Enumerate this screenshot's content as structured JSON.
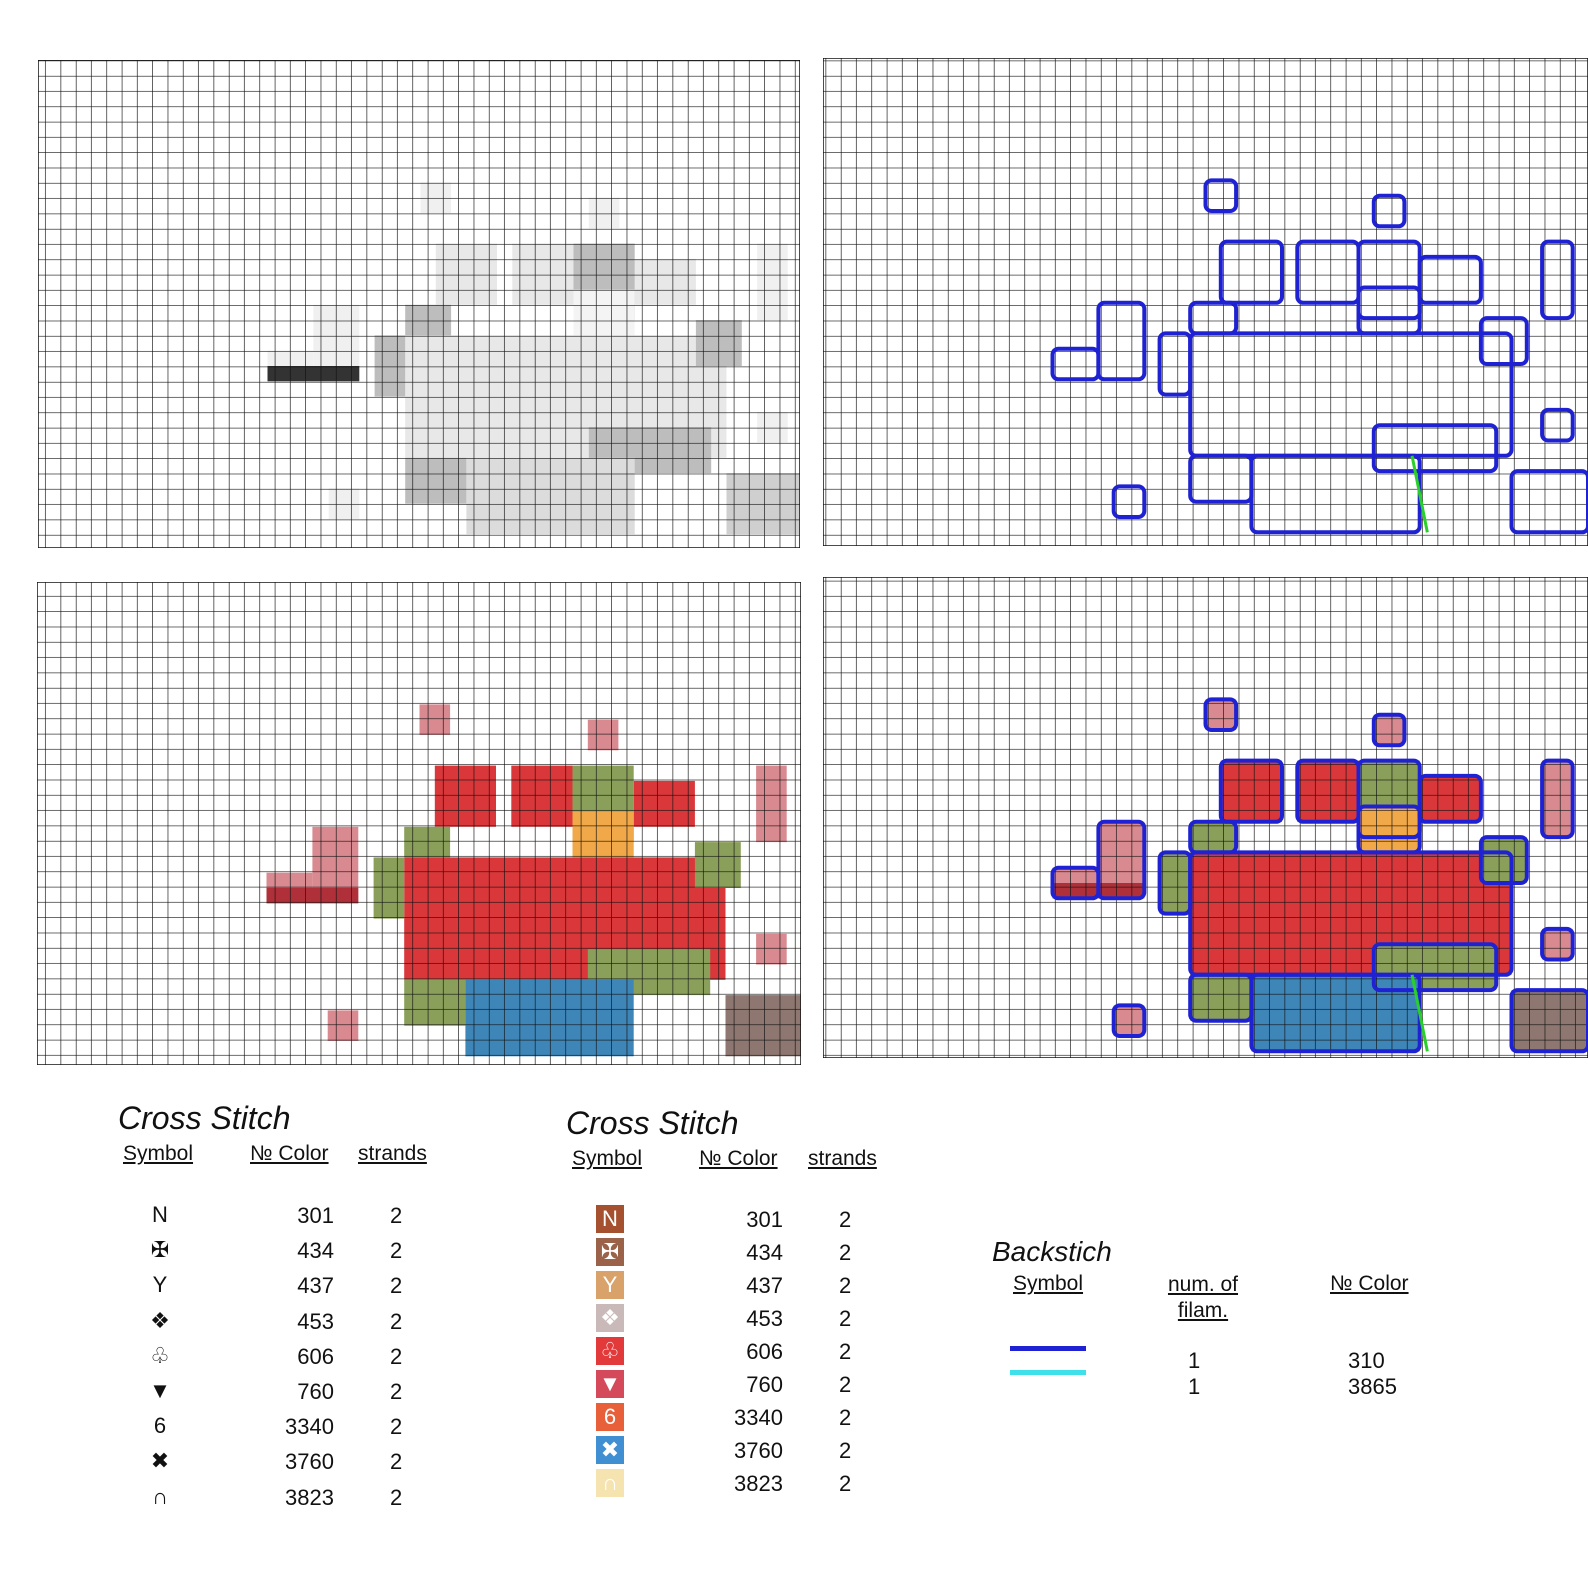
{
  "legends": [
    {
      "title": "Cross Stitch",
      "headers": [
        "Symbol",
        "№ Color",
        "strands"
      ],
      "rows": [
        {
          "symbol": "N",
          "color": "301",
          "strands": "2"
        },
        {
          "symbol": "✠",
          "color": "434",
          "strands": "2"
        },
        {
          "symbol": "Y",
          "color": "437",
          "strands": "2"
        },
        {
          "symbol": "❖",
          "color": "453",
          "strands": "2"
        },
        {
          "symbol": "♧",
          "color": "606",
          "strands": "2"
        },
        {
          "symbol": "▼",
          "color": "760",
          "strands": "2"
        },
        {
          "symbol": "6",
          "color": "3340",
          "strands": "2"
        },
        {
          "symbol": "✖",
          "color": "3760",
          "strands": "2"
        },
        {
          "symbol": "∩",
          "color": "3823",
          "strands": "2"
        }
      ]
    },
    {
      "title": "Cross Stitch",
      "headers": [
        "Symbol",
        "№ Color",
        "strands"
      ],
      "rows": [
        {
          "symbol": "N",
          "swatch": "#a5502e",
          "color": "301",
          "strands": "2"
        },
        {
          "symbol": "✠",
          "swatch": "#9a6248",
          "color": "434",
          "strands": "2"
        },
        {
          "symbol": "Y",
          "swatch": "#d8a26a",
          "color": "437",
          "strands": "2"
        },
        {
          "symbol": "❖",
          "swatch": "#c9b9b9",
          "color": "453",
          "strands": "2"
        },
        {
          "symbol": "♧",
          "swatch": "#e23a3a",
          "color": "606",
          "strands": "2"
        },
        {
          "symbol": "▼",
          "swatch": "#d44a5a",
          "color": "760",
          "strands": "2"
        },
        {
          "symbol": "6",
          "swatch": "#e8603a",
          "color": "3340",
          "strands": "2"
        },
        {
          "symbol": "✖",
          "swatch": "#3f8fd2",
          "color": "3760",
          "strands": "2"
        },
        {
          "symbol": "∩",
          "swatch": "#f6e4b0",
          "color": "3823",
          "strands": "2"
        }
      ]
    }
  ],
  "backstitch": {
    "title": "Backstich",
    "headers": [
      "Symbol",
      "num. of filam.",
      "№ Color"
    ],
    "rows": [
      {
        "line_color": "#1f22d2",
        "filaments": "1",
        "color": "310"
      },
      {
        "line_color": "#3ee0ea",
        "filaments": "1",
        "color": "3865"
      }
    ]
  }
}
